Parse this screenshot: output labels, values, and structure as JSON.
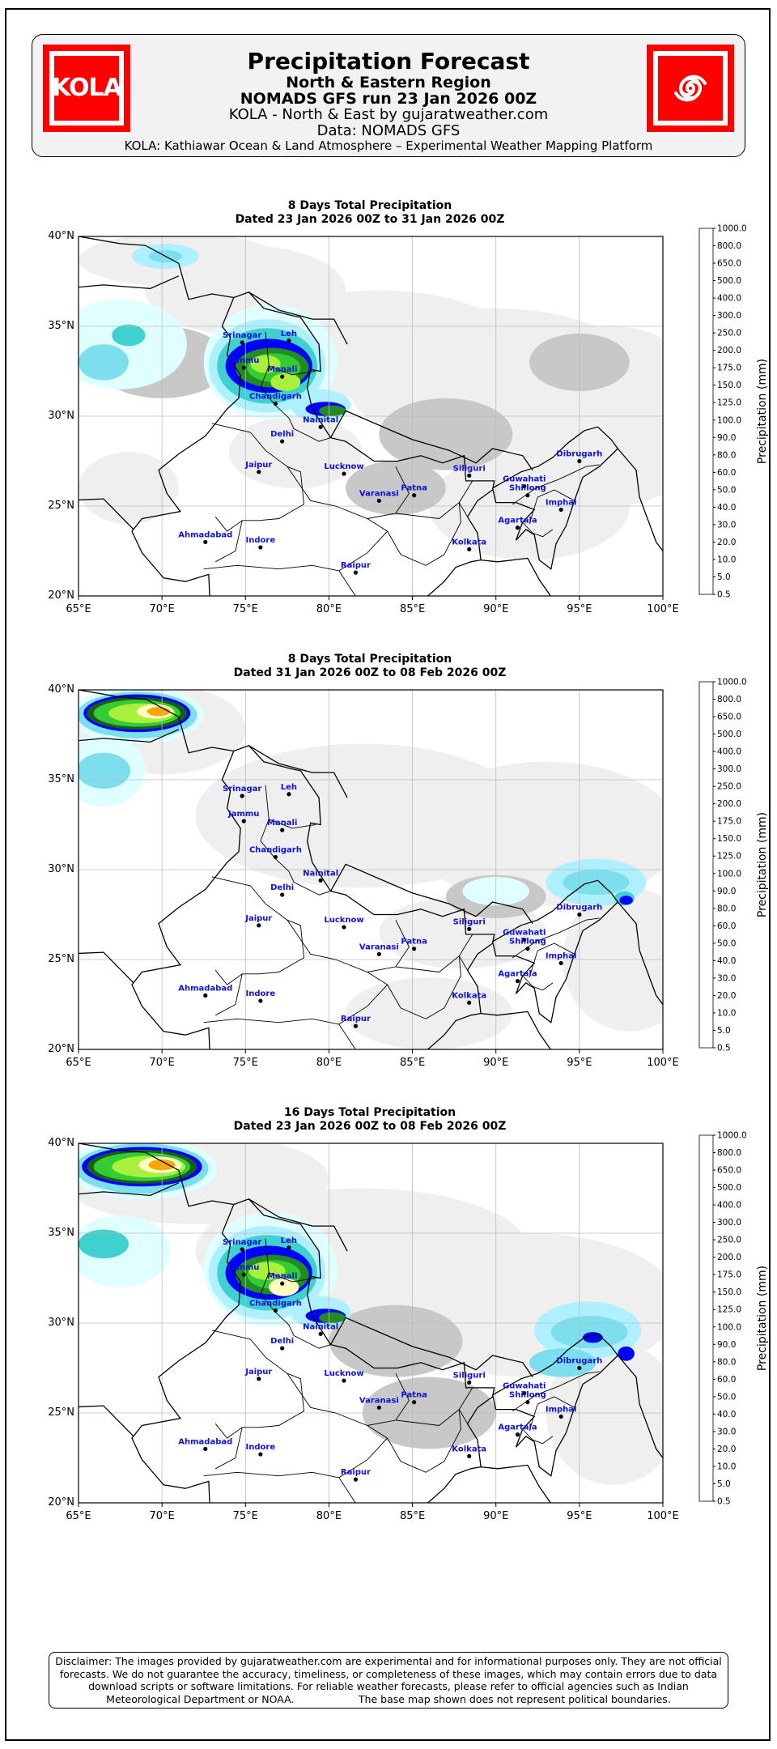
{
  "header": {
    "logo_left_text": "KOLA",
    "title": "Precipitation Forecast",
    "subtitle": "North & Eastern Region",
    "run": "NOMADS GFS run 23 Jan 2026 00Z",
    "source": "KOLA - North & East by gujaratweather.com",
    "data": "Data: NOMADS GFS",
    "tagline": "KOLA: Kathiawar Ocean & Land Atmosphere – Experimental Weather Mapping Platform",
    "logo_right_icon": "cyclone-swirl-icon"
  },
  "axes": {
    "x_ticks": [
      "65°E",
      "70°E",
      "75°E",
      "80°E",
      "85°E",
      "90°E",
      "95°E",
      "100°E"
    ],
    "y_ticks": [
      "40°N",
      "35°N",
      "30°N",
      "25°N",
      "20°N"
    ]
  },
  "colorbar": {
    "label": "Precipitation (mm)",
    "levels": [
      "0.5",
      "5.0",
      "10.0",
      "20.0",
      "30.0",
      "40.0",
      "50.0",
      "60.0",
      "80.0",
      "90.0",
      "100.0",
      "125.0",
      "150.0",
      "175.0",
      "200.0",
      "250.0",
      "300.0",
      "400.0",
      "500.0",
      "650.0",
      "800.0",
      "1000.0"
    ],
    "colors": [
      "#efefef",
      "#c8c8c8",
      "#e0ffff",
      "#aef0ff",
      "#7ddfee",
      "#40d0d0",
      "#0000ff",
      "#1a5c1a",
      "#238b23",
      "#33cc33",
      "#a8f03c",
      "#ffffc0",
      "#ffd700",
      "#ffa500",
      "#ff4500",
      "#ff0000",
      "#8b0000",
      "#4b0082",
      "#9400d3",
      "#da8fda",
      "#e8c8ff"
    ]
  },
  "cities": [
    {
      "name": "Srinagar",
      "lon": 74.8,
      "lat": 34.1
    },
    {
      "name": "Leh",
      "lon": 77.6,
      "lat": 34.2
    },
    {
      "name": "Jammu",
      "lon": 74.9,
      "lat": 32.7
    },
    {
      "name": "Manali",
      "lon": 77.2,
      "lat": 32.2
    },
    {
      "name": "Chandigarh",
      "lon": 76.8,
      "lat": 30.7
    },
    {
      "name": "Nainital",
      "lon": 79.5,
      "lat": 29.4
    },
    {
      "name": "Delhi",
      "lon": 77.2,
      "lat": 28.6
    },
    {
      "name": "Jaipur",
      "lon": 75.8,
      "lat": 26.9
    },
    {
      "name": "Lucknow",
      "lon": 80.9,
      "lat": 26.8
    },
    {
      "name": "Varanasi",
      "lon": 83.0,
      "lat": 25.3
    },
    {
      "name": "Patna",
      "lon": 85.1,
      "lat": 25.6
    },
    {
      "name": "Siliguri",
      "lon": 88.4,
      "lat": 26.7
    },
    {
      "name": "Guwahati",
      "lon": 91.7,
      "lat": 26.1
    },
    {
      "name": "Shillong",
      "lon": 91.9,
      "lat": 25.6
    },
    {
      "name": "Dibrugarh",
      "lon": 95.0,
      "lat": 27.5
    },
    {
      "name": "Imphal",
      "lon": 93.9,
      "lat": 24.8
    },
    {
      "name": "Agartala",
      "lon": 91.3,
      "lat": 23.8
    },
    {
      "name": "Kolkata",
      "lon": 88.4,
      "lat": 22.6
    },
    {
      "name": "Ahmadabad",
      "lon": 72.6,
      "lat": 23.0
    },
    {
      "name": "Indore",
      "lon": 75.9,
      "lat": 22.7
    },
    {
      "name": "Raipur",
      "lon": 81.6,
      "lat": 21.3
    }
  ],
  "panels": [
    {
      "title": "8 Days Total Precipitation",
      "dates": "Dated 23 Jan 2026 00Z to 31 Jan 2026 00Z"
    },
    {
      "title": "8 Days Total Precipitation",
      "dates": "Dated 31 Jan 2026 00Z to 08 Feb 2026 00Z"
    },
    {
      "title": "16 Days Total Precipitation",
      "dates": "Dated 23 Jan 2026 00Z to 08 Feb 2026 00Z"
    }
  ],
  "disclaimer": {
    "line1": "Disclaimer: The images provided by gujaratweather.com are experimental and for informational purposes only. They are not official",
    "line2": "forecasts. We do not guarantee the accuracy, timeliness, or completeness of these images, which may contain errors due to data",
    "line3": "download scripts or software limitations. For reliable weather forecasts, please refer to official agencies such as Indian",
    "line4": "Meteorological Department or NOAA.                    The base map shown does not represent political boundaries."
  }
}
